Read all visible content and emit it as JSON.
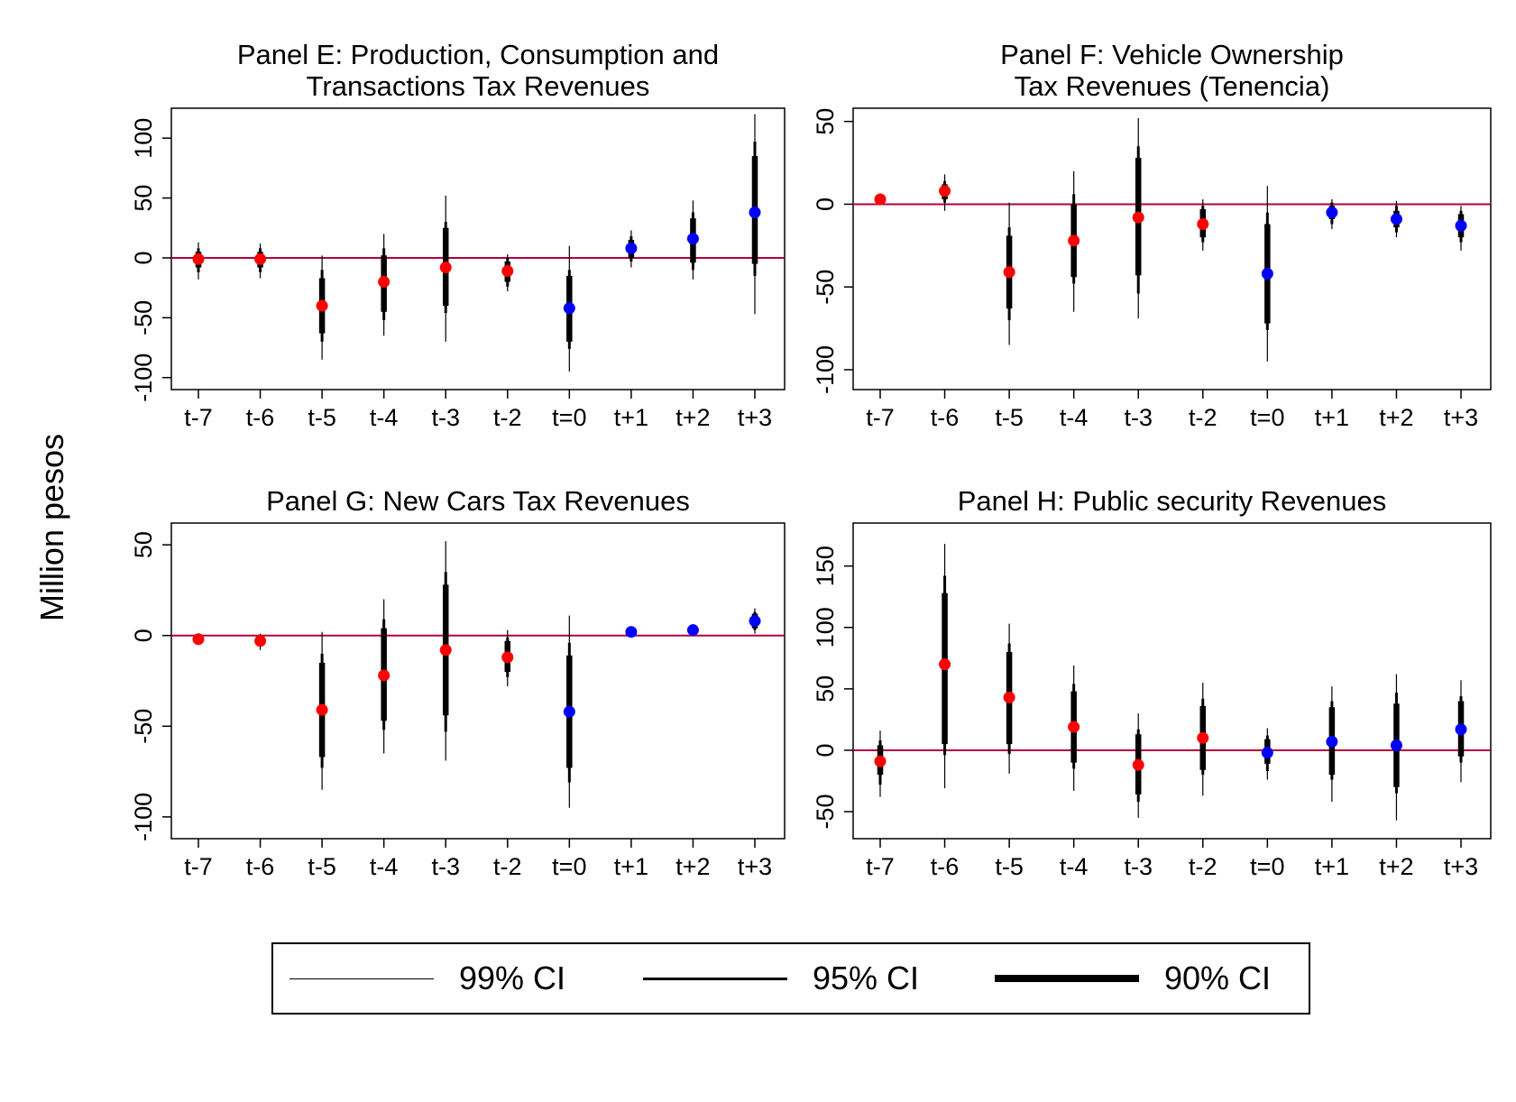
{
  "figure": {
    "ylabel": "Million pesos",
    "legend": [
      {
        "label": "99% CI",
        "weight": "thin"
      },
      {
        "label": "95% CI",
        "weight": "medium"
      },
      {
        "label": "90% CI",
        "weight": "thick"
      }
    ],
    "colors": {
      "pre": "#ff0000",
      "post": "#0000ff",
      "zero_line": "#b4003c",
      "ci": "#000000"
    }
  },
  "chart_data": [
    {
      "type": "scatter",
      "title": [
        "Panel E: Production, Consumption and",
        "Transactions Tax Revenues"
      ],
      "categories": [
        "t-7",
        "t-6",
        "t-5",
        "t-4",
        "t-3",
        "t-2",
        "t=0",
        "t+1",
        "t+2",
        "t+3"
      ],
      "ylim": [
        -110,
        125
      ],
      "yticks": [
        -100,
        -50,
        0,
        50,
        100
      ],
      "points": [
        {
          "x": "t-7",
          "y": -1,
          "period": "pre",
          "ci90": [
            -8,
            5
          ],
          "ci95": [
            -12,
            8
          ],
          "ci99": [
            -18,
            13
          ]
        },
        {
          "x": "t-6",
          "y": -1,
          "period": "pre",
          "ci90": [
            -8,
            5
          ],
          "ci95": [
            -12,
            8
          ],
          "ci99": [
            -17,
            12
          ]
        },
        {
          "x": "t-5",
          "y": -40,
          "period": "pre",
          "ci90": [
            -63,
            -17
          ],
          "ci95": [
            -70,
            -10
          ],
          "ci99": [
            -85,
            2
          ]
        },
        {
          "x": "t-4",
          "y": -20,
          "period": "pre",
          "ci90": [
            -45,
            2
          ],
          "ci95": [
            -52,
            8
          ],
          "ci99": [
            -65,
            20
          ]
        },
        {
          "x": "t-3",
          "y": -8,
          "period": "pre",
          "ci90": [
            -40,
            25
          ],
          "ci95": [
            -46,
            30
          ],
          "ci99": [
            -70,
            52
          ]
        },
        {
          "x": "t-2",
          "y": -11,
          "period": "pre",
          "ci90": [
            -20,
            -3
          ],
          "ci95": [
            -24,
            0
          ],
          "ci99": [
            -28,
            3
          ]
        },
        {
          "x": "t=0",
          "y": -42,
          "period": "post",
          "ci90": [
            -70,
            -15
          ],
          "ci95": [
            -76,
            -10
          ],
          "ci99": [
            -95,
            10
          ]
        },
        {
          "x": "t+1",
          "y": 8,
          "period": "post",
          "ci90": [
            0,
            15
          ],
          "ci95": [
            -3,
            18
          ],
          "ci99": [
            -8,
            23
          ]
        },
        {
          "x": "t+2",
          "y": 16,
          "period": "post",
          "ci90": [
            -4,
            33
          ],
          "ci95": [
            -10,
            38
          ],
          "ci99": [
            -18,
            48
          ]
        },
        {
          "x": "t+3",
          "y": 38,
          "period": "post",
          "ci90": [
            -5,
            85
          ],
          "ci95": [
            -15,
            97
          ],
          "ci99": [
            -47,
            120
          ]
        }
      ]
    },
    {
      "type": "scatter",
      "title": [
        "Panel F: Vehicle Ownership",
        "Tax Revenues (Tenencia)"
      ],
      "categories": [
        "t-7",
        "t-6",
        "t-5",
        "t-4",
        "t-3",
        "t-2",
        "t=0",
        "t+1",
        "t+2",
        "t+3"
      ],
      "ylim": [
        -112,
        58
      ],
      "yticks": [
        -100,
        -50,
        0,
        50
      ],
      "points": [
        {
          "x": "t-7",
          "y": 3,
          "period": "pre",
          "ci90": [
            3,
            3
          ],
          "ci95": [
            3,
            3
          ],
          "ci99": [
            3,
            3
          ]
        },
        {
          "x": "t-6",
          "y": 8,
          "period": "pre",
          "ci90": [
            3,
            12
          ],
          "ci95": [
            1,
            14
          ],
          "ci99": [
            -4,
            18
          ]
        },
        {
          "x": "t-5",
          "y": -41,
          "period": "pre",
          "ci90": [
            -63,
            -19
          ],
          "ci95": [
            -70,
            -14
          ],
          "ci99": [
            -85,
            1
          ]
        },
        {
          "x": "t-4",
          "y": -22,
          "period": "pre",
          "ci90": [
            -44,
            0
          ],
          "ci95": [
            -48,
            6
          ],
          "ci99": [
            -65,
            20
          ]
        },
        {
          "x": "t-3",
          "y": -8,
          "period": "pre",
          "ci90": [
            -43,
            28
          ],
          "ci95": [
            -54,
            35
          ],
          "ci99": [
            -69,
            52
          ]
        },
        {
          "x": "t-2",
          "y": -12,
          "period": "pre",
          "ci90": [
            -20,
            -3
          ],
          "ci95": [
            -23,
            -1
          ],
          "ci99": [
            -28,
            3
          ]
        },
        {
          "x": "t=0",
          "y": -42,
          "period": "post",
          "ci90": [
            -72,
            -12
          ],
          "ci95": [
            -76,
            -5
          ],
          "ci99": [
            -95,
            11
          ]
        },
        {
          "x": "t+1",
          "y": -5,
          "period": "post",
          "ci90": [
            -9,
            -1
          ],
          "ci95": [
            -12,
            1
          ],
          "ci99": [
            -15,
            3
          ]
        },
        {
          "x": "t+2",
          "y": -9,
          "period": "post",
          "ci90": [
            -14,
            -4
          ],
          "ci95": [
            -17,
            -1
          ],
          "ci99": [
            -20,
            2
          ]
        },
        {
          "x": "t+3",
          "y": -13,
          "period": "post",
          "ci90": [
            -20,
            -6
          ],
          "ci95": [
            -23,
            -4
          ],
          "ci99": [
            -28,
            -1
          ]
        }
      ]
    },
    {
      "type": "scatter",
      "title": [
        "Panel G: New Cars Tax Revenues"
      ],
      "categories": [
        "t-7",
        "t-6",
        "t-5",
        "t-4",
        "t-3",
        "t-2",
        "t=0",
        "t+1",
        "t+2",
        "t+3"
      ],
      "ylim": [
        -112,
        62
      ],
      "yticks": [
        -100,
        -50,
        0,
        50
      ],
      "points": [
        {
          "x": "t-7",
          "y": -2,
          "period": "pre",
          "ci90": [
            -2,
            -2
          ],
          "ci95": [
            -2,
            -2
          ],
          "ci99": [
            -2,
            -2
          ]
        },
        {
          "x": "t-6",
          "y": -3,
          "period": "pre",
          "ci90": [
            -5,
            -1
          ],
          "ci95": [
            -6,
            0
          ],
          "ci99": [
            -8,
            1
          ]
        },
        {
          "x": "t-5",
          "y": -41,
          "period": "pre",
          "ci90": [
            -67,
            -15
          ],
          "ci95": [
            -73,
            -10
          ],
          "ci99": [
            -85,
            2
          ]
        },
        {
          "x": "t-4",
          "y": -22,
          "period": "pre",
          "ci90": [
            -47,
            4
          ],
          "ci95": [
            -52,
            9
          ],
          "ci99": [
            -65,
            20
          ]
        },
        {
          "x": "t-3",
          "y": -8,
          "period": "pre",
          "ci90": [
            -44,
            28
          ],
          "ci95": [
            -53,
            35
          ],
          "ci99": [
            -69,
            52
          ]
        },
        {
          "x": "t-2",
          "y": -12,
          "period": "pre",
          "ci90": [
            -20,
            -3
          ],
          "ci95": [
            -23,
            -1
          ],
          "ci99": [
            -28,
            3
          ]
        },
        {
          "x": "t=0",
          "y": -42,
          "period": "post",
          "ci90": [
            -73,
            -11
          ],
          "ci95": [
            -81,
            -4
          ],
          "ci99": [
            -95,
            11
          ]
        },
        {
          "x": "t+1",
          "y": 2,
          "period": "post",
          "ci90": [
            2,
            2
          ],
          "ci95": [
            2,
            2
          ],
          "ci99": [
            2,
            2
          ]
        },
        {
          "x": "t+2",
          "y": 3,
          "period": "post",
          "ci90": [
            3,
            3
          ],
          "ci95": [
            3,
            3
          ],
          "ci99": [
            3,
            3
          ]
        },
        {
          "x": "t+3",
          "y": 8,
          "period": "post",
          "ci90": [
            4,
            12
          ],
          "ci95": [
            3,
            13
          ],
          "ci99": [
            1,
            15
          ]
        }
      ]
    },
    {
      "type": "scatter",
      "title": [
        "Panel H: Public security Revenues"
      ],
      "categories": [
        "t-7",
        "t-6",
        "t-5",
        "t-4",
        "t-3",
        "t-2",
        "t=0",
        "t+1",
        "t+2",
        "t+3"
      ],
      "ylim": [
        -72,
        185
      ],
      "yticks": [
        -50,
        0,
        50,
        100,
        150
      ],
      "points": [
        {
          "x": "t-7",
          "y": -9,
          "period": "pre",
          "ci90": [
            -20,
            4
          ],
          "ci95": [
            -28,
            8
          ],
          "ci99": [
            -38,
            16
          ]
        },
        {
          "x": "t-6",
          "y": 70,
          "period": "pre",
          "ci90": [
            5,
            128
          ],
          "ci95": [
            -4,
            142
          ],
          "ci99": [
            -31,
            168
          ]
        },
        {
          "x": "t-5",
          "y": 43,
          "period": "pre",
          "ci90": [
            5,
            80
          ],
          "ci95": [
            -3,
            87
          ],
          "ci99": [
            -19,
            103
          ]
        },
        {
          "x": "t-4",
          "y": 19,
          "period": "pre",
          "ci90": [
            -10,
            48
          ],
          "ci95": [
            -15,
            54
          ],
          "ci99": [
            -33,
            69
          ]
        },
        {
          "x": "t-3",
          "y": -12,
          "period": "pre",
          "ci90": [
            -36,
            13
          ],
          "ci95": [
            -42,
            17
          ],
          "ci99": [
            -55,
            30
          ]
        },
        {
          "x": "t-2",
          "y": 10,
          "period": "pre",
          "ci90": [
            -16,
            36
          ],
          "ci95": [
            -20,
            42
          ],
          "ci99": [
            -37,
            55
          ]
        },
        {
          "x": "t=0",
          "y": -2,
          "period": "post",
          "ci90": [
            -11,
            9
          ],
          "ci95": [
            -17,
            12
          ],
          "ci99": [
            -24,
            18
          ]
        },
        {
          "x": "t+1",
          "y": 7,
          "period": "post",
          "ci90": [
            -20,
            35
          ],
          "ci95": [
            -24,
            40
          ],
          "ci99": [
            -42,
            52
          ]
        },
        {
          "x": "t+2",
          "y": 4,
          "period": "post",
          "ci90": [
            -30,
            38
          ],
          "ci95": [
            -35,
            47
          ],
          "ci99": [
            -57,
            62
          ]
        },
        {
          "x": "t+3",
          "y": 17,
          "period": "post",
          "ci90": [
            -5,
            40
          ],
          "ci95": [
            -10,
            44
          ],
          "ci99": [
            -26,
            57
          ]
        }
      ]
    }
  ]
}
